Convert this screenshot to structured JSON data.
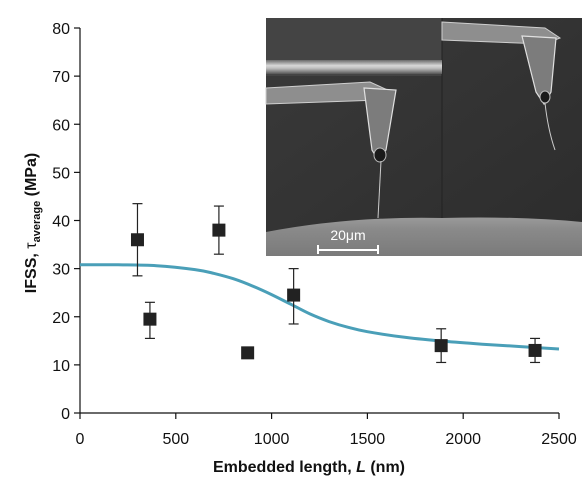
{
  "chart_data": {
    "type": "scatter",
    "xlabel": "Embedded length, L (nm)",
    "xlabel_parts": {
      "prefix": "Embedded length, ",
      "var": "L",
      "suffix": " (nm)"
    },
    "ylabel": "IFSS, τaverage (MPa)",
    "ylabel_parts": {
      "prefix": "IFSS, ",
      "sym": "τ",
      "sub": "average",
      "suffix": " (MPa)"
    },
    "xlim": [
      0,
      2500
    ],
    "ylim": [
      0,
      80
    ],
    "x_ticks": [
      "0",
      "500",
      "1000",
      "1500",
      "2000",
      "2500"
    ],
    "y_ticks": [
      "0",
      "10",
      "20",
      "30",
      "40",
      "50",
      "60",
      "70",
      "80"
    ],
    "grid": false,
    "legend": "none",
    "points": [
      {
        "x": 300,
        "y": 36,
        "yerr_low": 28.5,
        "yerr_high": 43.5
      },
      {
        "x": 365,
        "y": 19.5,
        "yerr_low": 15.5,
        "yerr_high": 23
      },
      {
        "x": 725,
        "y": 38,
        "yerr_low": 33,
        "yerr_high": 43
      },
      {
        "x": 875,
        "y": 12.5
      },
      {
        "x": 1115,
        "y": 24.5,
        "yerr_low": 18.5,
        "yerr_high": 30
      },
      {
        "x": 1885,
        "y": 14,
        "yerr_low": 10.5,
        "yerr_high": 17.5
      },
      {
        "x": 2375,
        "y": 13,
        "yerr_low": 10.5,
        "yerr_high": 15.5
      }
    ],
    "fit_curve": {
      "x": [
        0,
        200,
        400,
        600,
        700,
        800,
        900,
        1000,
        1100,
        1200,
        1300,
        1400,
        1500,
        1700,
        1900,
        2100,
        2300,
        2500
      ],
      "y": [
        30.8,
        30.8,
        30.6,
        29.8,
        29.0,
        27.9,
        26.4,
        24.6,
        22.6,
        20.6,
        19.0,
        17.8,
        16.9,
        15.7,
        14.9,
        14.3,
        13.8,
        13.3
      ]
    },
    "colors": {
      "markers": "#222222",
      "fit_curve": "#4a9fb8",
      "axis": "#111111"
    },
    "inset": {
      "type": "SEM micrograph",
      "scale_bar_label": "20μm"
    }
  }
}
